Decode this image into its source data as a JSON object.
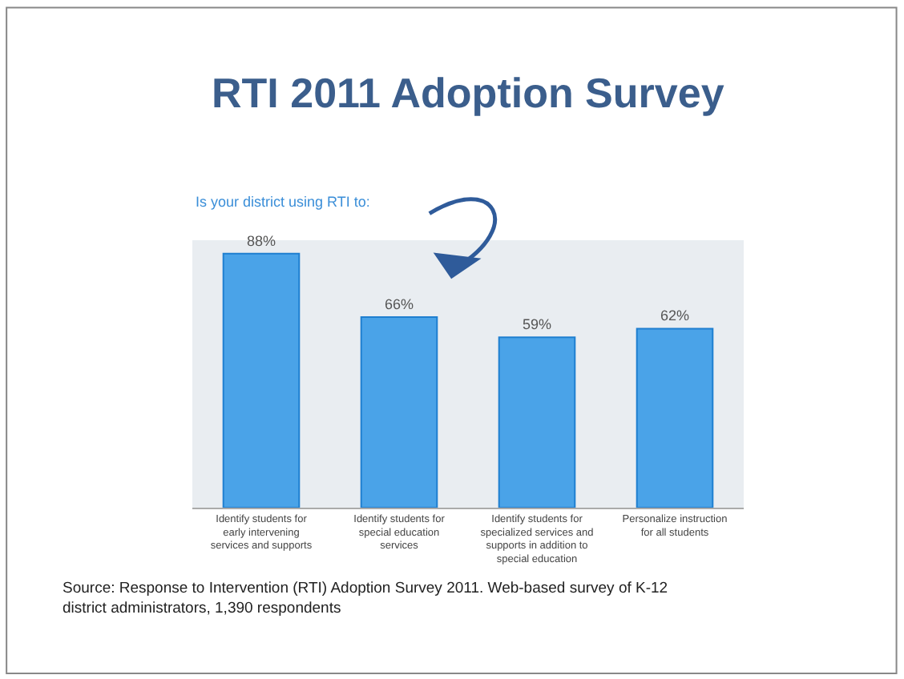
{
  "chart_data": {
    "type": "bar",
    "title": "RTI 2011 Adoption Survey",
    "subtitle": "Is your district using RTI to:",
    "categories": [
      "Identify students for early intervening services and supports",
      "Identify students for special education services",
      "Identify students for specialized services and supports in addition to special education",
      "Personalize instruction for all students"
    ],
    "values": [
      88,
      66,
      59,
      62
    ],
    "value_labels": [
      "88%",
      "66%",
      "59%",
      "62%"
    ],
    "color": "#4aa3e8",
    "tick_labels": "x",
    "grid": false,
    "legend": false,
    "annotations": [
      "Source: Response to Intervention (RTI) Adoption Survey 2011. Web-based survey of K-12 district administrators, 1,390 respondents"
    ]
  }
}
